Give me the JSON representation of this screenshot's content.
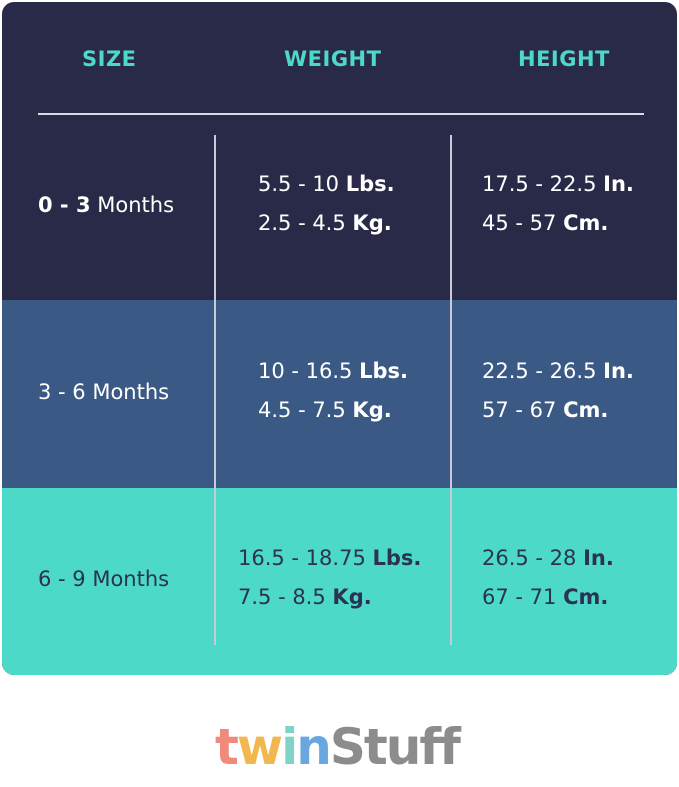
{
  "header": {
    "columns": [
      "SIZE",
      "WEIGHT",
      "HEIGHT"
    ]
  },
  "table": {
    "rows": [
      {
        "size": {
          "range": "0 - 3",
          "unit": "Months"
        },
        "weight": [
          {
            "value": "5.5 - 10",
            "unit": "Lbs."
          },
          {
            "value": "2.5 - 4.5",
            "unit": "Kg."
          }
        ],
        "height": [
          {
            "value": "17.5 - 22.5",
            "unit": "In."
          },
          {
            "value": "45 - 57",
            "unit": "Cm."
          }
        ]
      },
      {
        "size": {
          "range": "3 - 6",
          "unit": "Months"
        },
        "weight": [
          {
            "value": "10 - 16.5",
            "unit": "Lbs."
          },
          {
            "value": "4.5 - 7.5",
            "unit": "Kg."
          }
        ],
        "height": [
          {
            "value": "22.5 - 26.5",
            "unit": "In."
          },
          {
            "value": "57 - 67",
            "unit": "Cm."
          }
        ]
      },
      {
        "size": {
          "range": "6 - 9",
          "unit": "Months"
        },
        "weight": [
          {
            "value": "16.5 - 18.75",
            "unit": "Lbs."
          },
          {
            "value": "7.5 - 8.5",
            "unit": "Kg."
          }
        ],
        "height": [
          {
            "value": "26.5 - 28",
            "unit": "In."
          },
          {
            "value": "67 - 71",
            "unit": "Cm."
          }
        ]
      }
    ]
  },
  "logo": {
    "twin": [
      "t",
      "w",
      "i",
      "n"
    ],
    "rest": "Stuff"
  }
}
